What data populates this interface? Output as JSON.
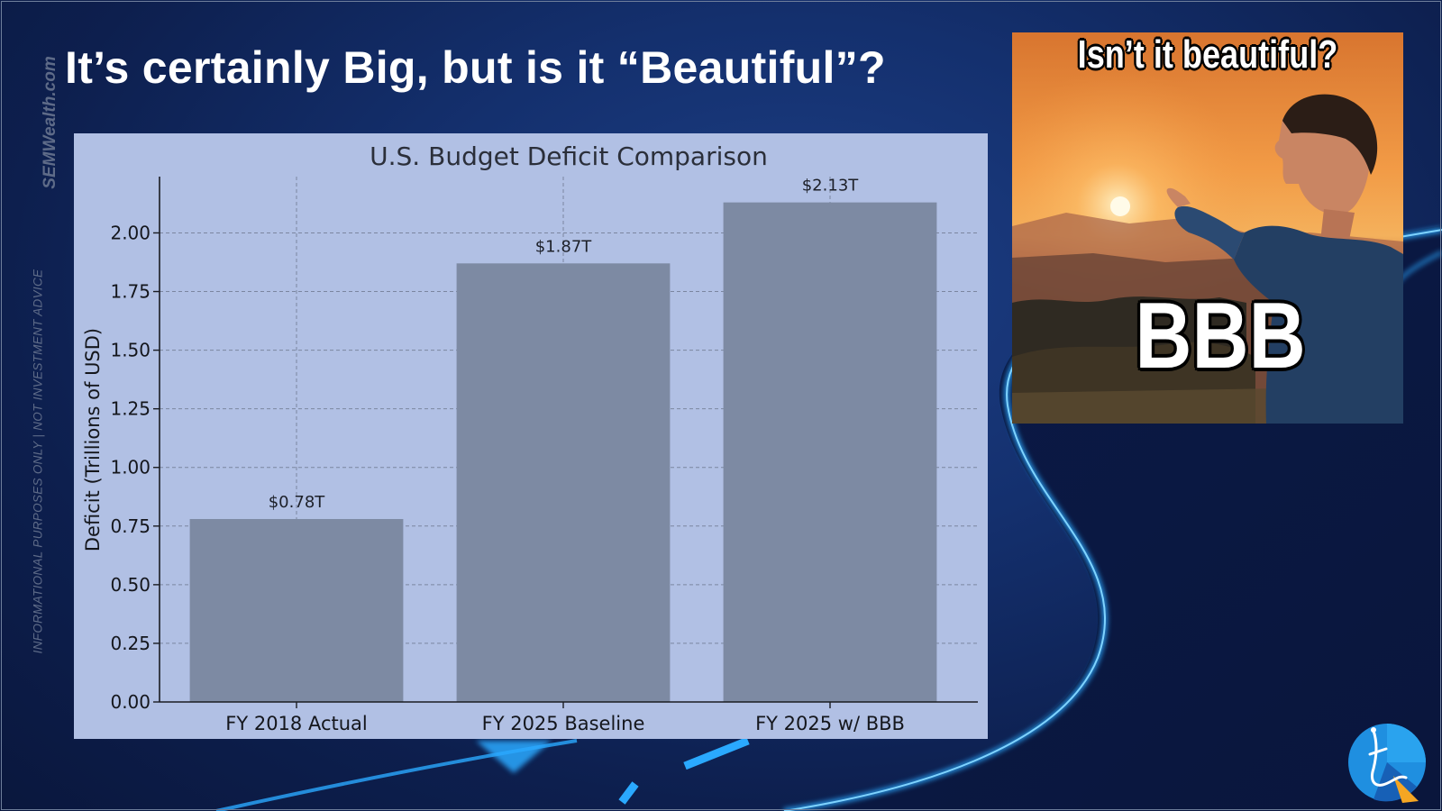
{
  "slide": {
    "title": "It’s certainly Big, but is it “Beautiful”?",
    "brand_vertical": "SEMWealth.com",
    "disclaimer_vertical": "INFORMATIONAL PURPOSES ONLY | NOT INVESTMENT ADVICE"
  },
  "meme": {
    "top_text": "Isn’t it beautiful?",
    "bottom_text": "BBB"
  },
  "chart_data": {
    "type": "bar",
    "title": "U.S. Budget Deficit Comparison",
    "xlabel": "",
    "ylabel": "Deficit (Trillions of USD)",
    "categories": [
      "FY 2018 Actual",
      "FY 2025 Baseline",
      "FY 2025 w/ BBB"
    ],
    "values": [
      0.78,
      1.87,
      2.13
    ],
    "value_labels": [
      "$0.78T",
      "$1.87T",
      "$2.13T"
    ],
    "ylim": [
      0,
      2.24
    ],
    "yticks": [
      "0.00",
      "0.25",
      "0.50",
      "0.75",
      "1.00",
      "1.25",
      "1.50",
      "1.75",
      "2.00"
    ],
    "grid": true,
    "legend": "none",
    "bar_color": "#7d8aa3",
    "background_color": "#b1c0e4"
  },
  "colors": {
    "slide_background": "#14306e",
    "accent_glow": "#2aa9ff"
  },
  "icons": {
    "logo": "compass-logo-icon"
  }
}
